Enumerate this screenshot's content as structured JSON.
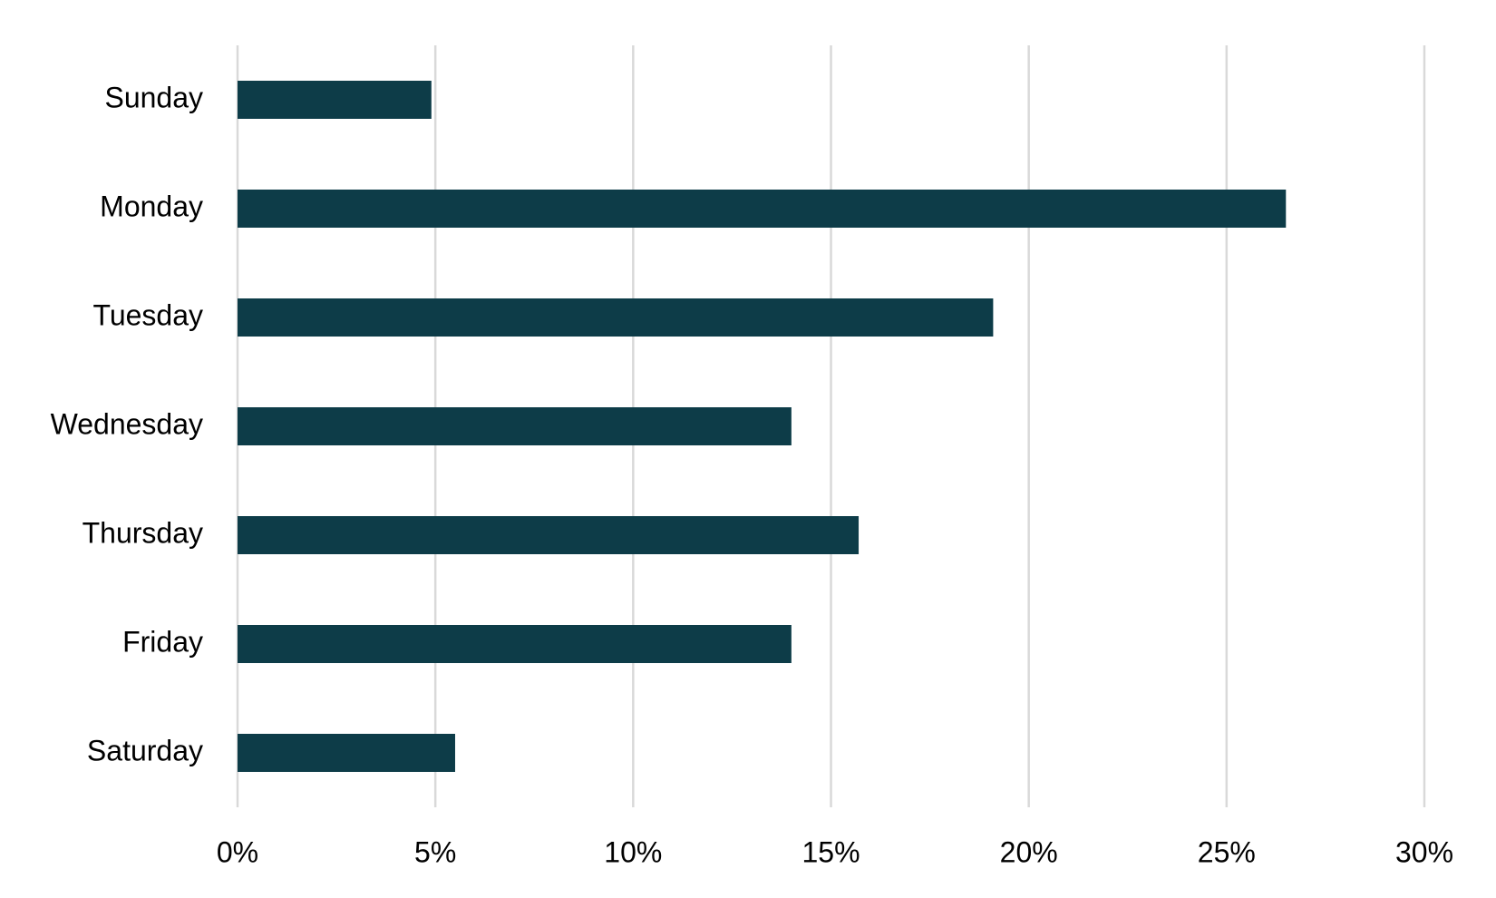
{
  "chart_data": {
    "type": "bar",
    "orientation": "horizontal",
    "categories": [
      "Sunday",
      "Monday",
      "Tuesday",
      "Wednesday",
      "Thursday",
      "Friday",
      "Saturday"
    ],
    "values": [
      4.9,
      26.5,
      19.1,
      14.0,
      15.7,
      14.0,
      5.5
    ],
    "color": "#0d3c48",
    "xlim": [
      0,
      30
    ],
    "xticks": [
      {
        "value": 0,
        "label": "0%"
      },
      {
        "value": 5,
        "label": "5%"
      },
      {
        "value": 10,
        "label": "10%"
      },
      {
        "value": 15,
        "label": "15%"
      },
      {
        "value": 20,
        "label": "20%"
      },
      {
        "value": 25,
        "label": "25%"
      },
      {
        "value": 30,
        "label": "30%"
      }
    ],
    "grid": true
  }
}
